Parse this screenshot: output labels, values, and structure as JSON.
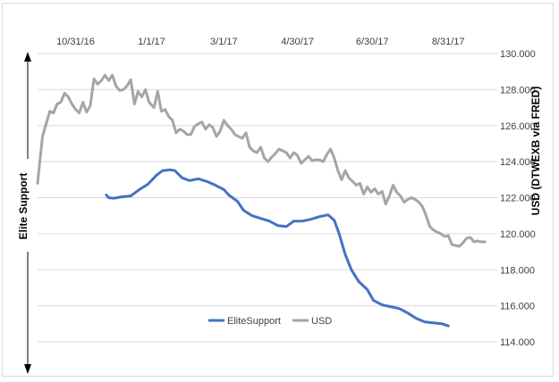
{
  "chart_data": {
    "type": "line",
    "title": "",
    "xlabel": "",
    "ylabel_left": "Elite Support",
    "ylabel_right": "USD (DTWEXB via FRED)",
    "x_tick_labels": [
      "10/31/16",
      "1/1/17",
      "3/1/17",
      "4/30/17",
      "6/30/17",
      "8/31/17"
    ],
    "x_tick_dates": [
      "2016-10-31",
      "2017-01-01",
      "2017-03-01",
      "2017-04-30",
      "2017-06-30",
      "2017-08-31"
    ],
    "x_range": [
      "2016-09-30",
      "2017-10-10"
    ],
    "y_right_ticks": [
      "130.000",
      "128.000",
      "126.000",
      "124.000",
      "122.000",
      "120.000",
      "118.000",
      "116.000",
      "114.000"
    ],
    "y_right_range": [
      114,
      130
    ],
    "grid": "horizontal",
    "legend_position": "bottom-center",
    "series": [
      {
        "name": "EliteSupport",
        "color": "#4472c4",
        "axis": "none",
        "points": [
          [
            "2016-11-25",
            122.15
          ],
          [
            "2016-11-27",
            122.0
          ],
          [
            "2016-12-01",
            121.97
          ],
          [
            "2016-12-08",
            122.05
          ],
          [
            "2016-12-15",
            122.1
          ],
          [
            "2016-12-22",
            122.45
          ],
          [
            "2016-12-29",
            122.75
          ],
          [
            "2017-01-05",
            123.25
          ],
          [
            "2017-01-10",
            123.5
          ],
          [
            "2017-01-16",
            123.55
          ],
          [
            "2017-01-20",
            123.5
          ],
          [
            "2017-01-26",
            123.1
          ],
          [
            "2017-02-01",
            122.95
          ],
          [
            "2017-02-08",
            123.05
          ],
          [
            "2017-02-15",
            122.9
          ],
          [
            "2017-02-22",
            122.7
          ],
          [
            "2017-03-01",
            122.45
          ],
          [
            "2017-03-05",
            122.15
          ],
          [
            "2017-03-12",
            121.8
          ],
          [
            "2017-03-17",
            121.3
          ],
          [
            "2017-03-24",
            121.0
          ],
          [
            "2017-03-31",
            120.85
          ],
          [
            "2017-04-07",
            120.7
          ],
          [
            "2017-04-14",
            120.45
          ],
          [
            "2017-04-21",
            120.4
          ],
          [
            "2017-04-27",
            120.7
          ],
          [
            "2017-05-04",
            120.7
          ],
          [
            "2017-05-11",
            120.8
          ],
          [
            "2017-05-18",
            120.95
          ],
          [
            "2017-05-25",
            121.05
          ],
          [
            "2017-05-30",
            120.75
          ],
          [
            "2017-06-03",
            120.0
          ],
          [
            "2017-06-08",
            118.85
          ],
          [
            "2017-06-13",
            118.0
          ],
          [
            "2017-06-19",
            117.35
          ],
          [
            "2017-06-26",
            116.9
          ],
          [
            "2017-07-01",
            116.3
          ],
          [
            "2017-07-08",
            116.05
          ],
          [
            "2017-07-15",
            115.95
          ],
          [
            "2017-07-22",
            115.85
          ],
          [
            "2017-07-29",
            115.6
          ],
          [
            "2017-08-05",
            115.3
          ],
          [
            "2017-08-12",
            115.1
          ],
          [
            "2017-08-19",
            115.05
          ],
          [
            "2017-08-26",
            115.0
          ],
          [
            "2017-08-31",
            114.88
          ]
        ]
      },
      {
        "name": "USD",
        "color": "#a5a5a5",
        "axis": "right",
        "points": [
          [
            "2016-09-30",
            122.8
          ],
          [
            "2016-10-04",
            125.4
          ],
          [
            "2016-10-07",
            126.1
          ],
          [
            "2016-10-10",
            126.8
          ],
          [
            "2016-10-13",
            126.7
          ],
          [
            "2016-10-16",
            127.2
          ],
          [
            "2016-10-19",
            127.3
          ],
          [
            "2016-10-22",
            127.8
          ],
          [
            "2016-10-25",
            127.6
          ],
          [
            "2016-10-28",
            127.2
          ],
          [
            "2016-10-31",
            126.9
          ],
          [
            "2016-11-03",
            126.7
          ],
          [
            "2016-11-06",
            127.3
          ],
          [
            "2016-11-09",
            126.75
          ],
          [
            "2016-11-12",
            127.1
          ],
          [
            "2016-11-15",
            128.6
          ],
          [
            "2016-11-18",
            128.3
          ],
          [
            "2016-11-21",
            128.5
          ],
          [
            "2016-11-24",
            128.8
          ],
          [
            "2016-11-27",
            128.5
          ],
          [
            "2016-11-30",
            128.8
          ],
          [
            "2016-12-03",
            128.2
          ],
          [
            "2016-12-06",
            127.95
          ],
          [
            "2016-12-09",
            128.0
          ],
          [
            "2016-12-12",
            128.2
          ],
          [
            "2016-12-15",
            128.55
          ],
          [
            "2016-12-18",
            127.2
          ],
          [
            "2016-12-21",
            127.9
          ],
          [
            "2016-12-24",
            127.6
          ],
          [
            "2016-12-27",
            128.0
          ],
          [
            "2016-12-30",
            127.3
          ],
          [
            "2017-01-03",
            127.0
          ],
          [
            "2017-01-06",
            127.9
          ],
          [
            "2017-01-09",
            126.8
          ],
          [
            "2017-01-12",
            126.9
          ],
          [
            "2017-01-15",
            126.5
          ],
          [
            "2017-01-18",
            126.3
          ],
          [
            "2017-01-21",
            125.6
          ],
          [
            "2017-01-24",
            125.8
          ],
          [
            "2017-01-27",
            125.7
          ],
          [
            "2017-01-30",
            125.5
          ],
          [
            "2017-02-02",
            125.5
          ],
          [
            "2017-02-05",
            125.95
          ],
          [
            "2017-02-08",
            126.1
          ],
          [
            "2017-02-11",
            126.2
          ],
          [
            "2017-02-14",
            125.8
          ],
          [
            "2017-02-17",
            126.05
          ],
          [
            "2017-02-20",
            125.9
          ],
          [
            "2017-02-23",
            125.4
          ],
          [
            "2017-02-26",
            125.7
          ],
          [
            "2017-03-01",
            126.3
          ],
          [
            "2017-03-04",
            126.0
          ],
          [
            "2017-03-07",
            125.8
          ],
          [
            "2017-03-10",
            125.5
          ],
          [
            "2017-03-13",
            125.4
          ],
          [
            "2017-03-16",
            125.3
          ],
          [
            "2017-03-19",
            125.6
          ],
          [
            "2017-03-22",
            124.8
          ],
          [
            "2017-03-25",
            124.6
          ],
          [
            "2017-03-28",
            124.5
          ],
          [
            "2017-03-31",
            124.8
          ],
          [
            "2017-04-03",
            124.2
          ],
          [
            "2017-04-06",
            124.0
          ],
          [
            "2017-04-09",
            124.25
          ],
          [
            "2017-04-12",
            124.45
          ],
          [
            "2017-04-15",
            124.7
          ],
          [
            "2017-04-18",
            124.6
          ],
          [
            "2017-04-21",
            124.5
          ],
          [
            "2017-04-24",
            124.2
          ],
          [
            "2017-04-27",
            124.5
          ],
          [
            "2017-04-30",
            124.35
          ],
          [
            "2017-05-03",
            123.9
          ],
          [
            "2017-05-06",
            124.1
          ],
          [
            "2017-05-09",
            124.3
          ],
          [
            "2017-05-12",
            124.05
          ],
          [
            "2017-05-15",
            124.1
          ],
          [
            "2017-05-18",
            124.1
          ],
          [
            "2017-05-21",
            124.0
          ],
          [
            "2017-05-24",
            124.4
          ],
          [
            "2017-05-27",
            124.7
          ],
          [
            "2017-05-30",
            124.2
          ],
          [
            "2017-06-02",
            123.5
          ],
          [
            "2017-06-05",
            123.0
          ],
          [
            "2017-06-08",
            123.5
          ],
          [
            "2017-06-11",
            123.1
          ],
          [
            "2017-06-14",
            122.9
          ],
          [
            "2017-06-17",
            122.7
          ],
          [
            "2017-06-20",
            122.8
          ],
          [
            "2017-06-23",
            122.2
          ],
          [
            "2017-06-26",
            122.6
          ],
          [
            "2017-06-29",
            122.3
          ],
          [
            "2017-07-02",
            122.5
          ],
          [
            "2017-07-05",
            122.2
          ],
          [
            "2017-07-08",
            122.35
          ],
          [
            "2017-07-11",
            121.65
          ],
          [
            "2017-07-14",
            122.1
          ],
          [
            "2017-07-17",
            122.7
          ],
          [
            "2017-07-20",
            122.3
          ],
          [
            "2017-07-23",
            122.1
          ],
          [
            "2017-07-26",
            121.75
          ],
          [
            "2017-07-29",
            121.9
          ],
          [
            "2017-08-01",
            122.0
          ],
          [
            "2017-08-04",
            121.9
          ],
          [
            "2017-08-07",
            121.75
          ],
          [
            "2017-08-10",
            121.5
          ],
          [
            "2017-08-13",
            121.0
          ],
          [
            "2017-08-16",
            120.4
          ],
          [
            "2017-08-19",
            120.2
          ],
          [
            "2017-08-22",
            120.1
          ],
          [
            "2017-08-25",
            120.0
          ],
          [
            "2017-08-28",
            119.85
          ],
          [
            "2017-08-31",
            119.9
          ],
          [
            "2017-09-03",
            119.4
          ],
          [
            "2017-09-06",
            119.35
          ],
          [
            "2017-09-09",
            119.3
          ],
          [
            "2017-09-12",
            119.5
          ],
          [
            "2017-09-15",
            119.75
          ],
          [
            "2017-09-18",
            119.8
          ],
          [
            "2017-09-21",
            119.55
          ],
          [
            "2017-09-24",
            119.6
          ],
          [
            "2017-09-27",
            119.55
          ],
          [
            "2017-09-30",
            119.55
          ]
        ]
      }
    ]
  }
}
